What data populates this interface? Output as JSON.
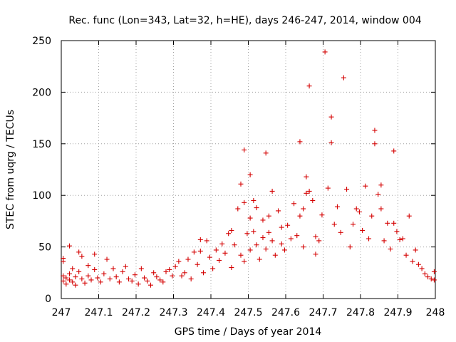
{
  "chart_data": {
    "type": "scatter",
    "title": "Rec. func (Lon=343, Lat=32, h=HE), days 246-247, 2014, window 004",
    "xlabel": "GPS time / Days of year 2014",
    "ylabel": "STEC from uqrg / TECUs",
    "xlim": [
      247,
      248
    ],
    "ylim": [
      0,
      250
    ],
    "xticks": [
      247,
      247.1,
      247.2,
      247.3,
      247.4,
      247.5,
      247.6,
      247.7,
      247.8,
      247.9,
      248
    ],
    "yticks": [
      0,
      50,
      100,
      150,
      200,
      250
    ],
    "grid": true,
    "marker": "+",
    "color": "#d40000",
    "series": [
      {
        "name": "STEC",
        "points": [
          [
            247.005,
            22
          ],
          [
            247.005,
            17
          ],
          [
            247.005,
            39
          ],
          [
            247.005,
            36
          ],
          [
            247.013,
            20
          ],
          [
            247.013,
            14
          ],
          [
            247.022,
            51
          ],
          [
            247.022,
            24
          ],
          [
            247.022,
            18
          ],
          [
            247.03,
            29
          ],
          [
            247.03,
            16
          ],
          [
            247.038,
            21
          ],
          [
            247.038,
            13
          ],
          [
            247.047,
            45
          ],
          [
            247.047,
            26
          ],
          [
            247.055,
            41
          ],
          [
            247.055,
            19
          ],
          [
            247.063,
            15
          ],
          [
            247.072,
            32
          ],
          [
            247.072,
            22
          ],
          [
            247.08,
            18
          ],
          [
            247.089,
            43
          ],
          [
            247.089,
            28
          ],
          [
            247.097,
            20
          ],
          [
            247.105,
            16
          ],
          [
            247.114,
            24
          ],
          [
            247.122,
            38
          ],
          [
            247.13,
            19
          ],
          [
            247.139,
            29
          ],
          [
            247.147,
            21
          ],
          [
            247.155,
            16
          ],
          [
            247.164,
            26
          ],
          [
            247.172,
            31
          ],
          [
            247.18,
            19
          ],
          [
            247.189,
            17
          ],
          [
            247.197,
            23
          ],
          [
            247.206,
            14
          ],
          [
            247.214,
            29
          ],
          [
            247.222,
            20
          ],
          [
            247.23,
            17
          ],
          [
            247.239,
            13
          ],
          [
            247.247,
            25
          ],
          [
            247.255,
            21
          ],
          [
            247.264,
            18
          ],
          [
            247.272,
            16
          ],
          [
            247.28,
            26
          ],
          [
            247.289,
            28
          ],
          [
            247.297,
            22
          ],
          [
            247.305,
            31
          ],
          [
            247.314,
            36
          ],
          [
            247.322,
            22
          ],
          [
            247.33,
            25
          ],
          [
            247.339,
            38
          ],
          [
            247.347,
            19
          ],
          [
            247.355,
            45
          ],
          [
            247.364,
            33
          ],
          [
            247.372,
            57
          ],
          [
            247.372,
            46
          ],
          [
            247.38,
            25
          ],
          [
            247.389,
            56
          ],
          [
            247.397,
            40
          ],
          [
            247.405,
            29
          ],
          [
            247.414,
            47
          ],
          [
            247.422,
            37
          ],
          [
            247.43,
            53
          ],
          [
            247.438,
            44
          ],
          [
            247.447,
            63
          ],
          [
            247.455,
            30
          ],
          [
            247.455,
            66
          ],
          [
            247.463,
            52
          ],
          [
            247.472,
            87
          ],
          [
            247.48,
            42
          ],
          [
            247.48,
            111
          ],
          [
            247.489,
            36
          ],
          [
            247.489,
            93
          ],
          [
            247.489,
            144
          ],
          [
            247.497,
            63
          ],
          [
            247.505,
            120
          ],
          [
            247.505,
            78
          ],
          [
            247.505,
            47
          ],
          [
            247.514,
            95
          ],
          [
            247.514,
            65
          ],
          [
            247.522,
            88
          ],
          [
            247.522,
            52
          ],
          [
            247.53,
            38
          ],
          [
            247.539,
            76
          ],
          [
            247.539,
            59
          ],
          [
            247.547,
            141
          ],
          [
            247.547,
            48
          ],
          [
            247.555,
            80
          ],
          [
            247.555,
            64
          ],
          [
            247.564,
            104
          ],
          [
            247.564,
            56
          ],
          [
            247.572,
            42
          ],
          [
            247.58,
            85
          ],
          [
            247.589,
            53
          ],
          [
            247.589,
            69
          ],
          [
            247.597,
            47
          ],
          [
            247.605,
            71
          ],
          [
            247.614,
            58
          ],
          [
            247.622,
            92
          ],
          [
            247.63,
            61
          ],
          [
            247.638,
            152
          ],
          [
            247.638,
            80
          ],
          [
            247.647,
            87
          ],
          [
            247.647,
            50
          ],
          [
            247.655,
            118
          ],
          [
            247.655,
            102
          ],
          [
            247.663,
            206
          ],
          [
            247.663,
            104
          ],
          [
            247.672,
            95
          ],
          [
            247.68,
            60
          ],
          [
            247.68,
            43
          ],
          [
            247.689,
            56
          ],
          [
            247.697,
            81
          ],
          [
            247.705,
            239
          ],
          [
            247.713,
            107
          ],
          [
            247.722,
            176
          ],
          [
            247.722,
            151
          ],
          [
            247.73,
            72
          ],
          [
            247.738,
            89
          ],
          [
            247.747,
            64
          ],
          [
            247.755,
            214
          ],
          [
            247.763,
            106
          ],
          [
            247.772,
            50
          ],
          [
            247.78,
            72
          ],
          [
            247.789,
            87
          ],
          [
            247.797,
            84
          ],
          [
            247.805,
            66
          ],
          [
            247.813,
            109
          ],
          [
            247.822,
            58
          ],
          [
            247.83,
            80
          ],
          [
            247.838,
            163
          ],
          [
            247.838,
            150
          ],
          [
            247.847,
            101
          ],
          [
            247.855,
            110
          ],
          [
            247.855,
            87
          ],
          [
            247.863,
            56
          ],
          [
            247.872,
            73
          ],
          [
            247.88,
            48
          ],
          [
            247.889,
            143
          ],
          [
            247.889,
            73
          ],
          [
            247.897,
            65
          ],
          [
            247.905,
            57
          ],
          [
            247.913,
            58
          ],
          [
            247.922,
            42
          ],
          [
            247.93,
            80
          ],
          [
            247.939,
            36
          ],
          [
            247.947,
            47
          ],
          [
            247.955,
            33
          ],
          [
            247.964,
            29
          ],
          [
            247.972,
            24
          ],
          [
            247.98,
            21
          ],
          [
            247.989,
            19
          ],
          [
            247.997,
            26
          ],
          [
            247.997,
            18
          ]
        ]
      }
    ]
  }
}
